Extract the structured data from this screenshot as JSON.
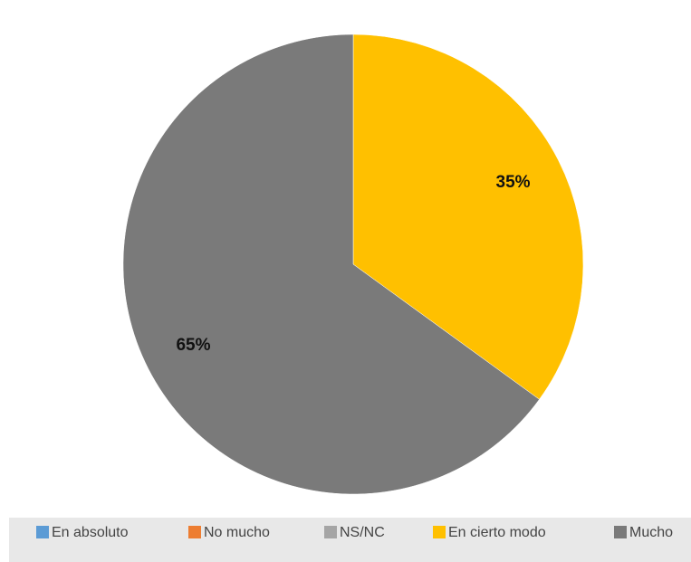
{
  "chart_data": {
    "type": "pie",
    "categories": [
      "En absoluto",
      "No mucho",
      "NS/NC",
      "En cierto modo",
      "Mucho"
    ],
    "values": [
      0,
      0,
      0,
      35,
      65
    ],
    "value_labels": [
      null,
      null,
      null,
      "35%",
      "65%"
    ],
    "colors": [
      "#5b9bd5",
      "#ed7d31",
      "#a5a5a5",
      "#ffc000",
      "#7a7a7a"
    ],
    "legend": "bottom"
  }
}
